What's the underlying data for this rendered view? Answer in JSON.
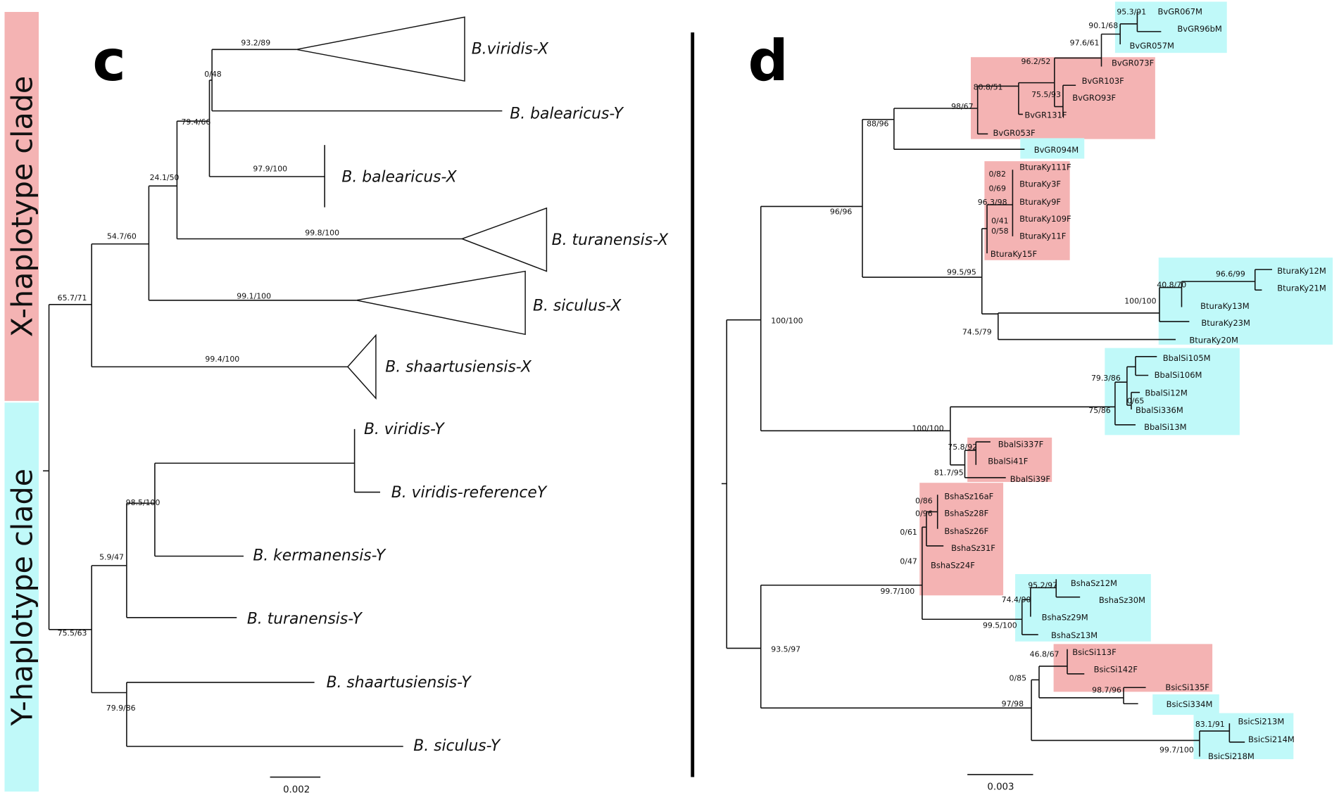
{
  "colors": {
    "x_clade": "#f4b3b3",
    "y_clade": "#c0f9f9",
    "female_box": "#f4b3b3",
    "male_box": "#c0f9f9"
  },
  "side_labels": {
    "x_clade": "X-haplotype clade",
    "y_clade": "Y-haplotype clade"
  },
  "panel_c": {
    "letter": "c",
    "scale_label": "0.002",
    "tips": [
      "B.viridis-X",
      "B. balearicus-Y",
      "B. balearicus-X",
      "B. turanensis-X",
      "B. siculus-X",
      "B. shaartusiensis-X",
      "B. viridis-Y",
      "B. viridis-referenceY",
      "B. kermanensis-Y",
      "B. turanensis-Y",
      "B. shaartusiensis-Y",
      "B. siculus-Y"
    ],
    "supports": [
      "93.2/89",
      "0/48",
      "79.4/66",
      "97.9/100",
      "24.1/50",
      "99.8/100",
      "54.7/60",
      "99.1/100",
      "65.7/71",
      "99.4/100",
      "98.5/100",
      "5.9/47",
      "75.5/63",
      "79.9/86"
    ]
  },
  "panel_d": {
    "letter": "d",
    "scale_label": "0.003",
    "tips": [
      "BvGR067M",
      "BvGR96bM",
      "BvGR057M",
      "BvGR073F",
      "BvGR103F",
      "BvGRO93F",
      "BvGR131F",
      "BvGR053F",
      "BvGR094M",
      "BturaKy111F",
      "BturaKy3F",
      "BturaKy9F",
      "BturaKy109F",
      "BturaKy11F",
      "BturaKy15F",
      "BturaKy12M",
      "BturaKy21M",
      "BturaKy13M",
      "BturaKy23M",
      "BturaKy20M",
      "BbalSi105M",
      "BbalSi106M",
      "BbalSi12M",
      "BbalSi336M",
      "BbalSi13M",
      "BbalSi337F",
      "BbalSi41F",
      "BbalSi39F",
      "BshaSz16aF",
      "BshaSz28F",
      "BshaSz26F",
      "BshaSz31F",
      "BshaSz24F",
      "BshaSz12M",
      "BshaSz30M",
      "BshaSz29M",
      "BshaSz13M",
      "BsicSi113F",
      "BsicSi142F",
      "BsicSi135F",
      "BsicSi334M",
      "BsicSi213M",
      "BsicSi214M",
      "BsicSi218M"
    ],
    "supports": [
      "95.3/91",
      "90.1/68",
      "97.6/61",
      "96.2/52",
      "80.8/51",
      "75.5/93",
      "98/67",
      "88/96",
      "96/96",
      "0/82",
      "0/69",
      "96.3/98",
      "0/41",
      "0/58",
      "99.5/95",
      "96.6/99",
      "40.8/70",
      "100/100",
      "74.5/79",
      "100/100",
      "79.3/86",
      "0/65",
      "75/86",
      "100/100",
      "75.8/92",
      "81.7/95",
      "0/86",
      "0/96",
      "0/61",
      "0/47",
      "99.7/100",
      "95.2/97",
      "74.4/90",
      "99.5/100",
      "93.5/97",
      "46.8/67",
      "0/85",
      "98.7/96",
      "97/98",
      "83.1/91",
      "99.7/100"
    ]
  }
}
